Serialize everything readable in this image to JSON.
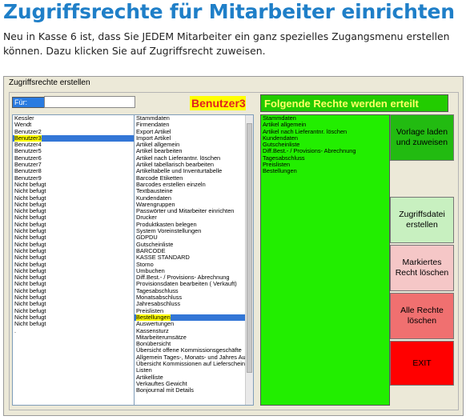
{
  "page": {
    "title": "Zugriffsrechte für Mitarbeiter einrichten",
    "intro": "Neu in Kasse 6 ist, dass Sie JEDEM Mitarbeiter ein ganz spezielles Zugangsmenu erstellen können.  Dazu klicken Sie auf Zugriffsrecht zuweisen."
  },
  "window": {
    "title": "Zugriffsrechte erstellen",
    "fuer_label": "Für:",
    "fuer_value": "",
    "selected_user": "Benutzer3",
    "rights_header": "Folgende Rechte werden erteilt"
  },
  "users": [
    "Kessler",
    "Wendt",
    "Benutzer2",
    "Benutzer3",
    "Benutzer4",
    "Benutzer5",
    "Benutzer6",
    "Benutzer7",
    "Benutzer8",
    "Benutzer9",
    "Nicht befugt",
    "Nicht befugt",
    "Nicht befugt",
    "Nicht befugt",
    "Nicht befugt",
    "Nicht befugt",
    "Nicht befugt",
    "Nicht befugt",
    "Nicht befugt",
    "Nicht befugt",
    "Nicht befugt",
    "Nicht befugt",
    "Nicht befugt",
    "Nicht befugt",
    "Nicht befugt",
    "Nicht befugt",
    "Nicht befugt",
    "Nicht befugt",
    "Nicht befugt",
    "Nicht befugt",
    "Nicht befugt",
    "Nicht befugt",
    ".",
    ""
  ],
  "selected_user_index": 3,
  "rights": [
    "Stammdaten",
    "Firmendaten",
    "Export Artikel",
    "Import Artikel",
    "Artikel allgemein",
    "Artikel bearbeiten",
    "Artikel nach Lieferantnr. löschen",
    "Artikel tabellarisch bearbeiten",
    "Artikeltabelle und Inventurtabelle",
    "Barcode Etiketten",
    "Barcodes erstellen einzeln",
    "Textbausteine",
    "Kundendaten",
    "Warengruppen",
    "Passwörter und Mitarbeiter einrichten",
    "Drucker",
    "Produktkasten belegen",
    "System Voreinstellungen",
    "GDPDU",
    "Gutscheinliste",
    "BARCODE",
    "KASSE STANDARD",
    "Storno",
    "Umbuchen",
    "Diff.Best.- / Provisions- Abrechnung",
    "Provisionsdaten bearbeiten ( Verkauft)",
    "Tagesabschluss",
    "Monatsabschluss",
    "Jahresabschluss",
    "Preislisten",
    "Bestellungen",
    "Auswertungen",
    "Kassensturz",
    "Mitarbeiterumsätze",
    "Bonübersicht",
    "Übersicht offene Kommissionsgeschäfte",
    "Allgemein Tages-, Monats- und Jahres Auswe",
    "Übersicht Kommissionen auf Lieferschein",
    "Listen",
    "Artikelliste",
    "Verkauftes Gewicht",
    "Bonjournal mit Details"
  ],
  "selected_right_index": 30,
  "granted_rights": [
    "Stammdaten",
    "Artikel allgemein",
    "Artikel nach Lieferantnr. löschen",
    "Kundendaten",
    "Gutscheinliste",
    "Diff.Best.- / Provisions- Abrechnung",
    "Tagesabschluss",
    "Preislisten",
    "Bestellungen"
  ],
  "buttons": {
    "vorlage": "Vorlage laden und zuweisen",
    "zugriffsdatei": "Zugriffsdatei erstellen",
    "markiertes": "Markiertes Recht löschen",
    "alle": "Alle Rechte löschen",
    "exit": "EXIT"
  },
  "colors": {
    "title": "#1f7fc8",
    "green": "#22ee00",
    "highlight": "#ffff00",
    "selection": "#3376d6"
  }
}
